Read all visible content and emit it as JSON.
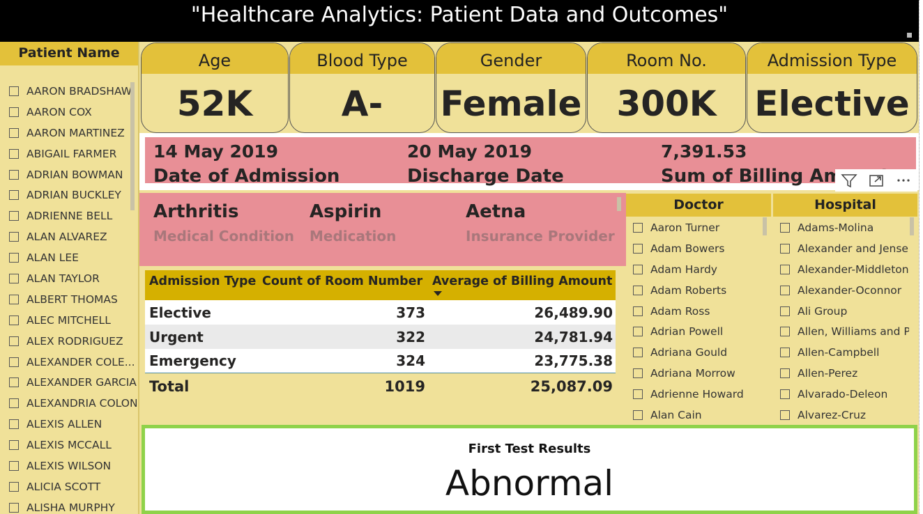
{
  "title": "\"Healthcare Analytics: Patient Data and Outcomes\"",
  "patient_slicer": {
    "header": "Patient Name",
    "items": [
      "AARON BRADSHAW",
      "AARON COX",
      "AARON MARTINEZ",
      "ABIGAIL FARMER",
      "ADRIAN BOWMAN",
      "ADRIAN BUCKLEY",
      "ADRIENNE BELL",
      "ALAN ALVAREZ",
      "ALAN LEE",
      "ALAN TAYLOR",
      "ALBERT THOMAS",
      "ALEC MITCHELL",
      "ALEX RODRIGUEZ",
      "ALEXANDER COLE...",
      "ALEXANDER GARCIA",
      "ALEXANDRIA COLON",
      "ALEXIS ALLEN",
      "ALEXIS MCCALL",
      "ALEXIS WILSON",
      "ALICIA SCOTT",
      "ALISHA MURPHY"
    ]
  },
  "kpis": [
    {
      "label": "Age",
      "value": "52K"
    },
    {
      "label": "Blood Type",
      "value": "A-"
    },
    {
      "label": "Gender",
      "value": "Female"
    },
    {
      "label": "Room No.",
      "value": "300K"
    },
    {
      "label": "Admission Type",
      "value": "Elective"
    }
  ],
  "dates": [
    {
      "value": "14 May 2019",
      "label": "Date of Admission"
    },
    {
      "value": "20 May 2019",
      "label": "Discharge Date"
    },
    {
      "value": "7,391.53",
      "label": "Sum of Billing Amount"
    }
  ],
  "visual_icons": [
    "filter-icon",
    "focus-mode-icon",
    "more-options-icon"
  ],
  "condition": [
    {
      "value": "Arthritis",
      "label": "Medical Condition"
    },
    {
      "value": "Aspirin",
      "label": "Medication"
    },
    {
      "value": "Aetna",
      "label": "Insurance Provider"
    }
  ],
  "table": {
    "headers": [
      "Admission Type",
      "Count of Room Number",
      "Average of Billing Amount"
    ],
    "rows": [
      [
        "Elective",
        "373",
        "26,489.90"
      ],
      [
        "Urgent",
        "322",
        "24,781.94"
      ],
      [
        "Emergency",
        "324",
        "23,775.38"
      ]
    ],
    "total": [
      "Total",
      "1019",
      "25,087.09"
    ]
  },
  "doctor_slicer": {
    "header": "Doctor",
    "items": [
      "Aaron Turner",
      "Adam Bowers",
      "Adam Hardy",
      "Adam Roberts",
      "Adam Ross",
      "Adrian Powell",
      "Adriana Gould",
      "Adriana Morrow",
      "Adrienne Howard",
      "Alan Cain"
    ]
  },
  "hospital_slicer": {
    "header": "Hospital",
    "items": [
      "Adams-Molina",
      "Alexander and Jense...",
      "Alexander-Middleton",
      "Alexander-Oconnor",
      "Ali Group",
      "Allen, Williams and P...",
      "Allen-Campbell",
      "Allen-Perez",
      "Alvarado-Deleon",
      "Alvarez-Cruz"
    ]
  },
  "test_card": {
    "title": "First Test Results",
    "value": "Abnormal"
  },
  "colors": {
    "header_gold": "#e3c13a",
    "panel_cream": "#f0e199",
    "pink": "#e88f96",
    "table_header": "#d5b000",
    "green_border": "#8fd24a"
  }
}
